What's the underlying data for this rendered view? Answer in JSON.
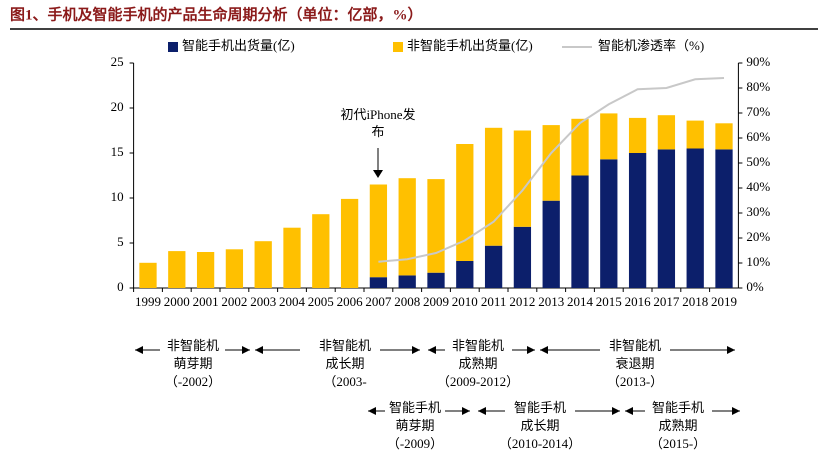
{
  "chart_data": {
    "type": "bar",
    "stacked": true,
    "title": "图1、手机及智能手机的产品生命周期分析（单位：亿部，%）",
    "categories": [
      "1999",
      "2000",
      "2001",
      "2002",
      "2003",
      "2004",
      "2005",
      "2006",
      "2007",
      "2008",
      "2009",
      "2010",
      "2011",
      "2012",
      "2013",
      "2014",
      "2015",
      "2016",
      "2017",
      "2018",
      "2019"
    ],
    "series": [
      {
        "name": "智能手机出货量(亿)",
        "type": "bar",
        "color": "#0c1f6b",
        "values": [
          null,
          null,
          null,
          null,
          null,
          null,
          null,
          null,
          1.2,
          1.4,
          1.7,
          3.0,
          4.7,
          6.8,
          9.7,
          12.5,
          14.3,
          15.0,
          15.4,
          15.5,
          15.4
        ]
      },
      {
        "name": "非智能手机出货量(亿)",
        "type": "bar",
        "color": "#ffc000",
        "values": [
          2.8,
          4.1,
          4.0,
          4.3,
          5.2,
          6.7,
          8.2,
          9.9,
          10.3,
          10.8,
          10.4,
          13.0,
          13.1,
          10.7,
          8.4,
          6.3,
          5.1,
          3.9,
          3.8,
          3.1,
          2.9
        ]
      },
      {
        "name": "智能机渗透率（%)",
        "type": "line",
        "axis": "y2",
        "color": "#c8c8c8",
        "values": [
          null,
          null,
          null,
          null,
          null,
          null,
          null,
          null,
          10.5,
          11.5,
          14,
          19,
          26.5,
          39,
          54,
          66,
          73.5,
          79.5,
          80,
          83.5,
          84
        ]
      }
    ],
    "ylim": [
      0,
      25
    ],
    "yticks": [
      0,
      5,
      10,
      15,
      20,
      25
    ],
    "y2lim": [
      0,
      90
    ],
    "y2ticks": [
      {
        "value": 0,
        "label": "0%"
      },
      {
        "value": 10,
        "label": "10%"
      },
      {
        "value": 20,
        "label": "20%"
      },
      {
        "value": 30,
        "label": "30%"
      },
      {
        "value": 40,
        "label": "40%"
      },
      {
        "value": 50,
        "label": "50%"
      },
      {
        "value": 60,
        "label": "60%"
      },
      {
        "value": 70,
        "label": "70%"
      },
      {
        "value": 80,
        "label": "80%"
      },
      {
        "value": 90,
        "label": "90%"
      }
    ],
    "annotation": "初代iPhone发布",
    "phases": [
      [
        "非智能机",
        "萌芽期",
        "（-2002）"
      ],
      [
        "非智能机",
        "成长期",
        "（2003-"
      ],
      [
        "非智能机",
        "成熟期",
        "（2009-2012）"
      ],
      [
        "非智能机",
        "衰退期",
        "（2013-）"
      ],
      [
        "智能手机",
        "萌芽期",
        "（-2009）"
      ],
      [
        "智能手机",
        "成长期",
        "（2010-2014）"
      ],
      [
        "智能手机",
        "成熟期",
        "（2015-）"
      ]
    ]
  }
}
